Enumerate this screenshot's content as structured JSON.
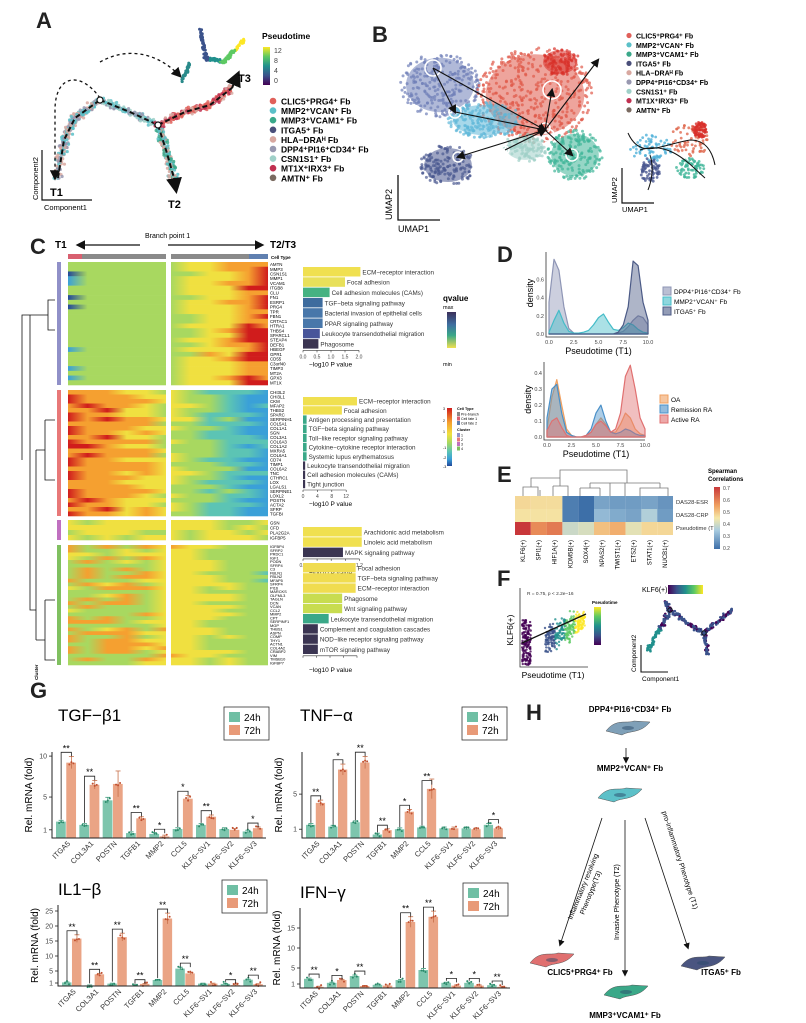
{
  "panel_labels": {
    "A": "A",
    "B": "B",
    "C": "C",
    "D": "D",
    "E": "E",
    "F": "F",
    "G": "G",
    "H": "H"
  },
  "cell_types": [
    {
      "label": "CLIC5⁺PRG4⁺ Fb",
      "color": "#e0605a"
    },
    {
      "label": "MMP2⁺VCAN⁺ Fb",
      "color": "#5bc0c8"
    },
    {
      "label": "MMP3⁺VCAM1⁺ Fb",
      "color": "#3aa88a"
    },
    {
      "label": "ITGA5⁺ Fb",
      "color": "#4a4f7a"
    },
    {
      "label": "HLA−DRAᴴ Fb",
      "color": "#d8a8a0"
    },
    {
      "label": "DPP4⁺PI16⁺CD34⁺ Fb",
      "color": "#9898b0"
    },
    {
      "label": "CSN1S1⁺ Fb",
      "color": "#9fd0c8"
    },
    {
      "label": "MT1X⁺IRX3⁺ Fb",
      "color": "#c03050"
    },
    {
      "label": "AMTN⁺ Fb",
      "color": "#7a6a60"
    }
  ],
  "panelA": {
    "colorbar_title": "Pseudotime",
    "colorbar_ticks": [
      "12",
      "8",
      "4",
      "0"
    ],
    "terminals": [
      "T1",
      "T2",
      "T3"
    ],
    "xlabel": "Component1",
    "ylabel": "Component2"
  },
  "panelB": {
    "xlabel": "UMAP1",
    "ylabel": "UMAP2"
  },
  "panelC": {
    "left": "T1",
    "middle": "Branch point 1",
    "right": "T2/T3",
    "celltype_title": "Cell Type",
    "cluster_rotated": "Cluster",
    "genes": [
      [
        "AMTN",
        "MMP3",
        "CSN1S1",
        "MMP1",
        "VCAM1",
        "ITGB8",
        "CLU",
        "FN1",
        "ESRP1",
        "PRG4",
        "TPR",
        "FBN1",
        "CRTAC1",
        "HTRA1",
        "THBS4",
        "SPARCL1",
        "STEAP4",
        "DEFB1",
        "HBEGF",
        "GPR1",
        "CD55",
        "C3orf40",
        "TIMP3",
        "MT2A",
        "GPX3",
        "MT1X"
      ],
      [
        "CHI3L2",
        "CHI3L1",
        "CKM",
        "MFAP2",
        "THBS2",
        "SPARC",
        "SERPINH1",
        "COL5A1",
        "COL1A1",
        "SGN",
        "COL3A1",
        "COL6A3",
        "COL1A2",
        "MXRA5",
        "COL6A1",
        "CD74",
        "TIMP1",
        "COL6A2",
        "TNC",
        "CTHRC1",
        "LOX",
        "LGALS1",
        "SERPINE1",
        "LOXL2",
        "POSTN",
        "ACTA2",
        "SFRP",
        "TGFBI"
      ],
      [
        "GSN",
        "CFD",
        "PLA2G2A",
        "IGFBP5"
      ],
      [
        "IGFBP4",
        "SFRP2",
        "PRDC1",
        "IGF1",
        "PODN",
        "SFRP4",
        "C3",
        "FBLN1",
        "FBLN2",
        "MFAP5",
        "SFRP4",
        "PI16",
        "MARCKS",
        "OLFML3",
        "TAGLN",
        "DCN",
        "VCAN",
        "CCL2",
        "MMP2",
        "CPT",
        "SERPINF1",
        "MGP",
        "THBS1",
        "ASPN",
        "COMP",
        "THY1",
        "ACTN1",
        "COL4A2",
        "CRABP2",
        "VIM",
        "TMSB10",
        "IGFBP7"
      ]
    ],
    "axis_title": "−log10 P value",
    "pathway_blocks": [
      {
        "ticks": [
          "0.0",
          "0.5",
          "1.0",
          "1.5",
          "2.0"
        ],
        "tick_values": [
          0,
          0.5,
          1,
          1.5,
          2
        ],
        "bars": [
          {
            "label": "ECM−receptor interaction",
            "value": 2.05,
            "color": "#f0e050"
          },
          {
            "label": "Focal adhesion",
            "value": 1.5,
            "color": "#e8e05a"
          },
          {
            "label": "Cell adhesion molecules (CAMs)",
            "value": 0.95,
            "color": "#45b282"
          },
          {
            "label": "TGF−beta signaling pathway",
            "value": 0.7,
            "color": "#3e6c9e"
          },
          {
            "label": "Bacterial invasion of epithelial cells",
            "value": 0.7,
            "color": "#4877aa"
          },
          {
            "label": "PPAR signaling pathway",
            "value": 0.7,
            "color": "#4877aa"
          },
          {
            "label": "Leukocyte transendothelial migration",
            "value": 0.6,
            "color": "#48559a"
          },
          {
            "label": "Phagosome",
            "value": 0.55,
            "color": "#3b3552"
          }
        ]
      },
      {
        "ticks": [
          "0",
          "4",
          "8",
          "12"
        ],
        "tick_values": [
          0,
          4,
          8,
          12
        ],
        "bars": [
          {
            "label": "ECM−receptor interaction",
            "value": 15,
            "color": "#f0e050"
          },
          {
            "label": "Focal adhesion",
            "value": 10.8,
            "color": "#f0e050"
          },
          {
            "label": "Antigen processing and presentation",
            "value": 1,
            "color": "#3aa888"
          },
          {
            "label": "TGF−beta signaling pathway",
            "value": 1,
            "color": "#3aa888"
          },
          {
            "label": "Toll−like receptor signaling pathway",
            "value": 1,
            "color": "#3aa888"
          },
          {
            "label": "Cytokine−cytokine receptor interaction",
            "value": 1,
            "color": "#3aa888"
          },
          {
            "label": "Systemic lupus erythematosus",
            "value": 1,
            "color": "#3aa888"
          },
          {
            "label": "Leukocyte transendothelial migration",
            "value": 0.6,
            "color": "#3b3552"
          },
          {
            "label": "Cell adhesion molecules (CAMs)",
            "value": 0.6,
            "color": "#3b3552"
          },
          {
            "label": "Tight junction",
            "value": 0.6,
            "color": "#3b3552"
          }
        ]
      },
      {
        "ticks": [
          "0.0",
          "0.3",
          "0.6",
          "0.9",
          "1.2"
        ],
        "tick_values": [
          0,
          0.3,
          0.6,
          0.9,
          1.2
        ],
        "bars": [
          {
            "label": "Arachidonic acid metabolism",
            "value": 1.25,
            "color": "#f0e050"
          },
          {
            "label": "Linoleic acid metabolism",
            "value": 1.25,
            "color": "#f0e050"
          },
          {
            "label": "MAPK signaling pathway",
            "value": 0.85,
            "color": "#3b3552"
          }
        ]
      },
      {
        "ticks": [],
        "tick_values": [
          0,
          1,
          2,
          3,
          4
        ],
        "bars": [
          {
            "label": "Focal adhesion",
            "value": 3.9,
            "color": "#f0dc50"
          },
          {
            "label": "TGF−beta signaling pathway",
            "value": 3.9,
            "color": "#f0dc50"
          },
          {
            "label": "ECM−receptor interaction",
            "value": 3.9,
            "color": "#f0dc50"
          },
          {
            "label": "Phagosome",
            "value": 2.9,
            "color": "#c8dc50"
          },
          {
            "label": "Wnt signaling pathway",
            "value": 2.9,
            "color": "#c8dc50"
          },
          {
            "label": "Leukocyte transendothelial migration",
            "value": 1.9,
            "color": "#3aa888"
          },
          {
            "label": "Complement and coagulation cascades",
            "value": 1.1,
            "color": "#3b3552"
          },
          {
            "label": "NOD−like receptor signaling pathway",
            "value": 1.1,
            "color": "#3b3552"
          },
          {
            "label": "mTOR signaling pathway",
            "value": 1.1,
            "color": "#3b3552"
          }
        ]
      }
    ],
    "qvalue_legend": {
      "title": "qvalue",
      "max": "max",
      "min": "min"
    },
    "heat_legend": {
      "ticks": [
        "3",
        "2",
        "1",
        "-1",
        "-2",
        "-3"
      ],
      "celltype_title": "Cell Type",
      "celltype_items": [
        {
          "label": "Pre-branch",
          "color": "#8a8a8a"
        },
        {
          "label": "Cell fate 1",
          "color": "#d86070"
        },
        {
          "label": "Cell fate 2",
          "color": "#6080b0"
        }
      ],
      "cluster_title": "Cluster",
      "cluster_items": [
        {
          "label": "1",
          "color": "#9090c8"
        },
        {
          "label": "2",
          "color": "#e87878"
        },
        {
          "label": "3",
          "color": "#c070c0"
        },
        {
          "label": "4",
          "color": "#80c060"
        }
      ]
    }
  },
  "panelD": {
    "legend1_title": "Cell Subtype",
    "legend2_title": "State"
  },
  "panelE": {
    "colorbar_title": "Spearman Correlations",
    "colorbar_ticks": [
      "0.7",
      "0.6",
      "0.5",
      "0.4",
      "0.3",
      "0.2"
    ]
  },
  "panelF": {
    "annotation": "R = 0.75, p < 2.2e−16",
    "ylabel": "KLF6(+)",
    "xlabel": "Pseudotime (T1)",
    "colorbar_title": "Pseudotime",
    "traj_colorbar_title": "KLF6(+)",
    "traj_xlabel": "Component1",
    "traj_ylabel": "Component2"
  },
  "panelH": {
    "nodes": [
      "DPP4⁺PI16⁺CD34⁺ Fb",
      "MMP2⁺VCAN⁺ Fb",
      "CLIC5⁺PRG4⁺ Fb",
      "MMP3⁺VCAM1⁺ Fb",
      "ITGA5⁺ Fb"
    ],
    "edge_labels": [
      "Inflammatory resolving",
      "Phenotype(T3)",
      "Invasive Phenotype (T2)",
      "pro-inflammatory Phenotype (T1)"
    ]
  },
  "chart_data": [
    {
      "type": "density",
      "panel": "D-top",
      "xlabel": "Pseudotime (T1)",
      "ylabel": "density",
      "xlim": [
        0,
        10
      ],
      "ylim": [
        0,
        0.9
      ],
      "xticks": [
        "0.0",
        "2.5",
        "5.0",
        "7.5",
        "10.0"
      ],
      "yticks": [
        "0.0",
        "0.2",
        "0.4",
        "0.6"
      ],
      "legend_title": "Cell Subtype",
      "legend": "right",
      "x": [
        0,
        0.5,
        1,
        1.5,
        2,
        2.5,
        3,
        3.5,
        4,
        4.5,
        5,
        5.5,
        6,
        6.5,
        7,
        7.5,
        8,
        8.5,
        9,
        9.5,
        10
      ],
      "series": [
        {
          "name": "DPP4⁺PI16⁺CD34⁺ Fb",
          "color": "#8e95b5",
          "values": [
            0.35,
            0.82,
            0.7,
            0.3,
            0.06,
            0.01,
            0,
            0,
            0,
            0,
            0,
            0,
            0,
            0,
            0.01,
            0.03,
            0.08,
            0.15,
            0.2,
            0.18,
            0.1
          ]
        },
        {
          "name": "MMP2⁺VCAN⁺ Fb",
          "color": "#45bcc8",
          "values": [
            0.02,
            0.15,
            0.26,
            0.12,
            0.03,
            0.01,
            0.01,
            0.02,
            0.04,
            0.1,
            0.18,
            0.22,
            0.13,
            0.05,
            0.04,
            0.07,
            0.12,
            0.1,
            0.05,
            0.02,
            0.01
          ]
        },
        {
          "name": "ITGA5⁺ Fb",
          "color": "#4b5a86",
          "values": [
            0,
            0,
            0,
            0,
            0,
            0,
            0,
            0,
            0,
            0,
            0,
            0,
            0,
            0,
            0.02,
            0.1,
            0.3,
            0.8,
            0.75,
            0.35,
            0.15
          ]
        }
      ]
    },
    {
      "type": "density",
      "panel": "D-bottom",
      "xlabel": "Pseudotime (T1)",
      "ylabel": "density",
      "xlim": [
        0,
        10
      ],
      "ylim": [
        0,
        0.47
      ],
      "xticks": [
        "0.0",
        "2.5",
        "5.0",
        "7.5",
        "10.0"
      ],
      "yticks": [
        "0.0",
        "0.1",
        "0.2",
        "0.3",
        "0.4"
      ],
      "legend_title": "State",
      "legend": "right",
      "x": [
        0,
        0.5,
        1,
        1.5,
        2,
        2.5,
        3,
        3.5,
        4,
        4.5,
        5,
        5.5,
        6,
        6.5,
        7,
        7.5,
        8,
        8.5,
        9,
        9.5,
        10
      ],
      "series": [
        {
          "name": "OA",
          "color": "#f0a060",
          "values": [
            0.05,
            0.25,
            0.36,
            0.2,
            0.05,
            0.01,
            0,
            0,
            0.01,
            0.03,
            0.08,
            0.12,
            0.08,
            0.03,
            0.03,
            0.08,
            0.15,
            0.12,
            0.05,
            0.02,
            0.01
          ]
        },
        {
          "name": "Remission RA",
          "color": "#4a90c8",
          "values": [
            0.12,
            0.3,
            0.33,
            0.15,
            0.03,
            0.01,
            0,
            0,
            0.01,
            0.05,
            0.15,
            0.2,
            0.1,
            0.03,
            0.02,
            0.03,
            0.05,
            0.04,
            0.02,
            0.01,
            0.01
          ]
        },
        {
          "name": "Active RA",
          "color": "#e07070",
          "values": [
            0.04,
            0.1,
            0.12,
            0.06,
            0.01,
            0,
            0,
            0,
            0.01,
            0.03,
            0.08,
            0.1,
            0.07,
            0.03,
            0.05,
            0.15,
            0.38,
            0.45,
            0.3,
            0.12,
            0.05
          ]
        }
      ]
    },
    {
      "type": "heatmap",
      "panel": "E",
      "columns": [
        "KLF6(+)",
        "SPI1(+)",
        "HIF1A(+)",
        "KDM5B(+)",
        "SOX4(+)",
        "NPAS2(+)",
        "TWIST1(+)",
        "ETS2(+)",
        "STAT1(+)",
        "NUCB1(+)"
      ],
      "rows": [
        "DAS28-ESR",
        "DAS28-CRP",
        "Pseudotime (T1)"
      ],
      "values": [
        [
          0.48,
          0.47,
          0.47,
          0.22,
          0.2,
          0.27,
          0.26,
          0.26,
          0.27,
          0.25
        ],
        [
          0.46,
          0.46,
          0.46,
          0.22,
          0.17,
          0.3,
          0.28,
          0.27,
          0.34,
          0.26
        ],
        [
          0.7,
          0.6,
          0.62,
          0.38,
          0.4,
          0.52,
          0.55,
          0.42,
          0.48,
          0.48
        ]
      ],
      "range": [
        0.2,
        0.7
      ]
    },
    {
      "type": "bar",
      "panel": "G",
      "title": "TGF−β1",
      "ylabel": "Rel. mRNA (fold)",
      "ylim": [
        0,
        10.5
      ],
      "yticks": [
        1,
        5,
        10
      ],
      "categories": [
        "ITGA5",
        "COL3A1",
        "POSTN",
        "TGFB1",
        "MMP2",
        "CCL5",
        "KLF6−SV1",
        "KLF6−SV2",
        "KLF6−SV3"
      ],
      "series": [
        {
          "name": "24h",
          "color": "#6fbfa4",
          "values": [
            2.0,
            1.6,
            4.6,
            0.6,
            0.5,
            1.1,
            1.6,
            1.1,
            0.8
          ]
        },
        {
          "name": "72h",
          "color": "#e89a78",
          "values": [
            9.2,
            6.5,
            6.6,
            2.4,
            0.2,
            4.8,
            2.6,
            1.0,
            1.2
          ]
        }
      ],
      "significance": [
        "**",
        "**",
        "",
        "**",
        "*",
        "*",
        "**",
        "",
        "*"
      ]
    },
    {
      "type": "bar",
      "panel": "G",
      "title": "TNF−α",
      "ylabel": "Rel. mRNA (fold)",
      "ylim": [
        0,
        9.8
      ],
      "yticks": [
        1,
        5
      ],
      "categories": [
        "ITGA5",
        "COL3A1",
        "POSTN",
        "TGFB1",
        "MMP2",
        "CCL5",
        "KLF6−SV1",
        "KLF6−SV2",
        "KLF6−SV3"
      ],
      "series": [
        {
          "name": "24h",
          "color": "#6fbfa4",
          "values": [
            1.5,
            1.3,
            1.8,
            0.4,
            1.0,
            1.2,
            1.1,
            1.1,
            1.5
          ]
        },
        {
          "name": "72h",
          "color": "#e89a78",
          "values": [
            4.0,
            7.8,
            8.6,
            0.9,
            3.0,
            5.6,
            1.1,
            1.0,
            1.1
          ]
        }
      ],
      "significance": [
        "**",
        "*",
        "**",
        "**",
        "*",
        "**",
        "",
        "",
        "*"
      ]
    },
    {
      "type": "bar",
      "panel": "G",
      "title": "IL1−β",
      "ylabel": "Rel. mRNA (fold)",
      "ylim": [
        0,
        27
      ],
      "yticks": [
        1,
        5,
        10,
        15,
        20,
        25
      ],
      "categories": [
        "ITGA5",
        "COL3A1",
        "POSTN",
        "TGFB1",
        "MMP2",
        "CCL5",
        "KLF6−SV1",
        "KLF6−SV2",
        "KLF6−SV3"
      ],
      "series": [
        {
          "name": "24h",
          "color": "#6fbfa4",
          "values": [
            1.2,
            0.2,
            0.8,
            0.1,
            2.0,
            5.8,
            0.8,
            0.7,
            2.1
          ]
        },
        {
          "name": "72h",
          "color": "#e89a78",
          "values": [
            15.8,
            3.9,
            16.3,
            0.7,
            22.5,
            4.2,
            0.8,
            0.3,
            0.6
          ]
        }
      ],
      "significance": [
        "**",
        "**",
        "**",
        "**",
        "**",
        "**",
        "",
        "*",
        "**"
      ]
    },
    {
      "type": "bar",
      "panel": "G",
      "title": "IFN−γ",
      "ylabel": "Rel. mRNA (fold)",
      "ylim": [
        0,
        20
      ],
      "yticks": [
        1,
        5,
        10,
        15
      ],
      "categories": [
        "ITGA5",
        "COL3A1",
        "POSTN",
        "TGFB1",
        "MMP2",
        "CCL5",
        "KLF6−SV1",
        "KLF6−SV2",
        "KLF6−SV3"
      ],
      "series": [
        {
          "name": "24h",
          "color": "#6fbfa4",
          "values": [
            2.3,
            1.3,
            3.0,
            0.8,
            2.0,
            4.5,
            1.3,
            1.3,
            0.7
          ]
        },
        {
          "name": "72h",
          "color": "#e89a78",
          "values": [
            0.3,
            2.0,
            0.5,
            0.6,
            16.5,
            17.8,
            0.6,
            0.6,
            0.3
          ]
        }
      ],
      "significance": [
        "**",
        "*",
        "**",
        "",
        "**",
        "**",
        "*",
        "*",
        "**"
      ]
    }
  ]
}
